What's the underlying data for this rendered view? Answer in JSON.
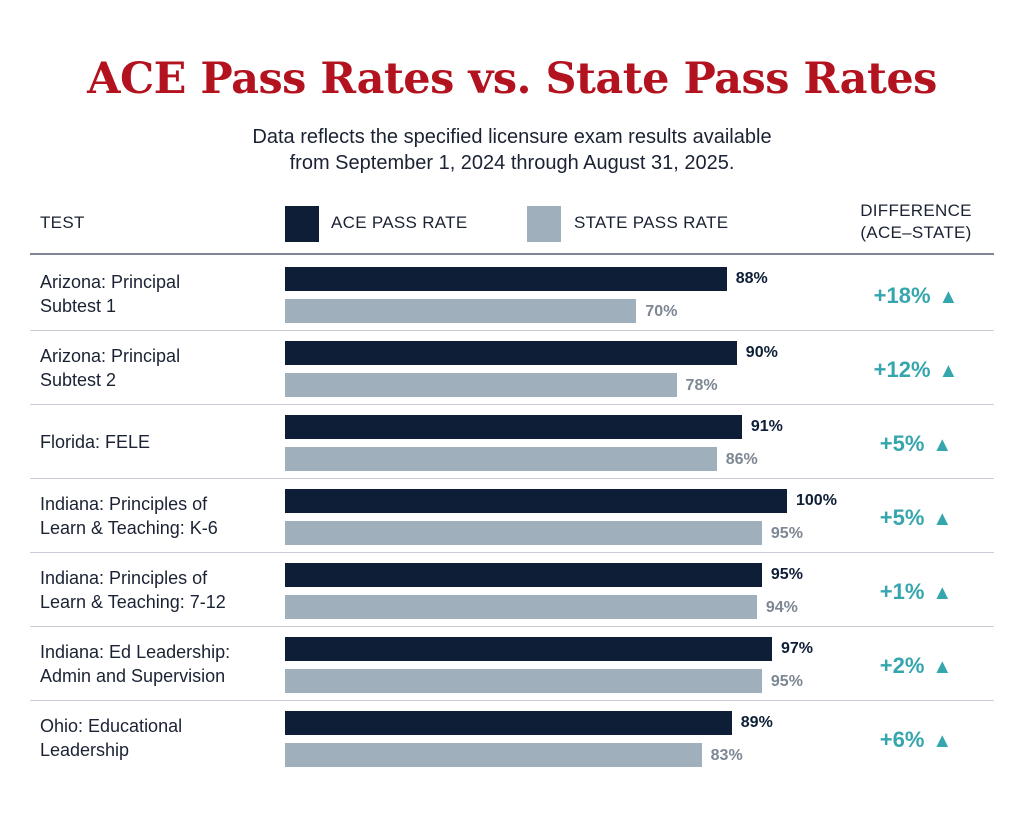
{
  "chart_data": {
    "type": "bar",
    "title": "ACE Pass Rates vs. State Pass Rates",
    "subtitle_lines": [
      "Data reflects the specified licensure exam results available",
      "from September 1, 2024 through August 31, 2025."
    ],
    "headers": {
      "test": "TEST",
      "ace": "ACE PASS RATE",
      "state": "STATE PASS RATE",
      "difference_line1": "DIFFERENCE",
      "difference_line2": "(ACE–STATE)"
    },
    "colors": {
      "ace": "#0d1e36",
      "state": "#9fb0bc",
      "difference": "#35a6ad",
      "title": "#b3121f"
    },
    "xlim": [
      0,
      100
    ],
    "rows": [
      {
        "label_lines": [
          "Arizona: Principal",
          "Subtest 1"
        ],
        "ace": 88,
        "state": 70,
        "ace_label": "88%",
        "state_label": "70%",
        "diff_label": "+18%"
      },
      {
        "label_lines": [
          "Arizona: Principal",
          "Subtest 2"
        ],
        "ace": 90,
        "state": 78,
        "ace_label": "90%",
        "state_label": "78%",
        "diff_label": "+12%"
      },
      {
        "label_lines": [
          "Florida: FELE"
        ],
        "ace": 91,
        "state": 86,
        "ace_label": "91%",
        "state_label": "86%",
        "diff_label": "+5%"
      },
      {
        "label_lines": [
          "Indiana: Principles of",
          "Learn & Teaching: K-6"
        ],
        "ace": 100,
        "state": 95,
        "ace_label": "100%",
        "state_label": "95%",
        "diff_label": "+5%"
      },
      {
        "label_lines": [
          "Indiana: Principles of",
          "Learn & Teaching: 7-12"
        ],
        "ace": 95,
        "state": 94,
        "ace_label": "95%",
        "state_label": "94%",
        "diff_label": "+1%"
      },
      {
        "label_lines": [
          "Indiana: Ed Leadership:",
          "Admin and Supervision"
        ],
        "ace": 97,
        "state": 95,
        "ace_label": "97%",
        "state_label": "95%",
        "diff_label": "+2%"
      },
      {
        "label_lines": [
          "Ohio: Educational",
          "Leadership"
        ],
        "ace": 89,
        "state": 83,
        "ace_label": "89%",
        "state_label": "83%",
        "diff_label": "+6%"
      }
    ],
    "arrow_glyph": "▲"
  }
}
